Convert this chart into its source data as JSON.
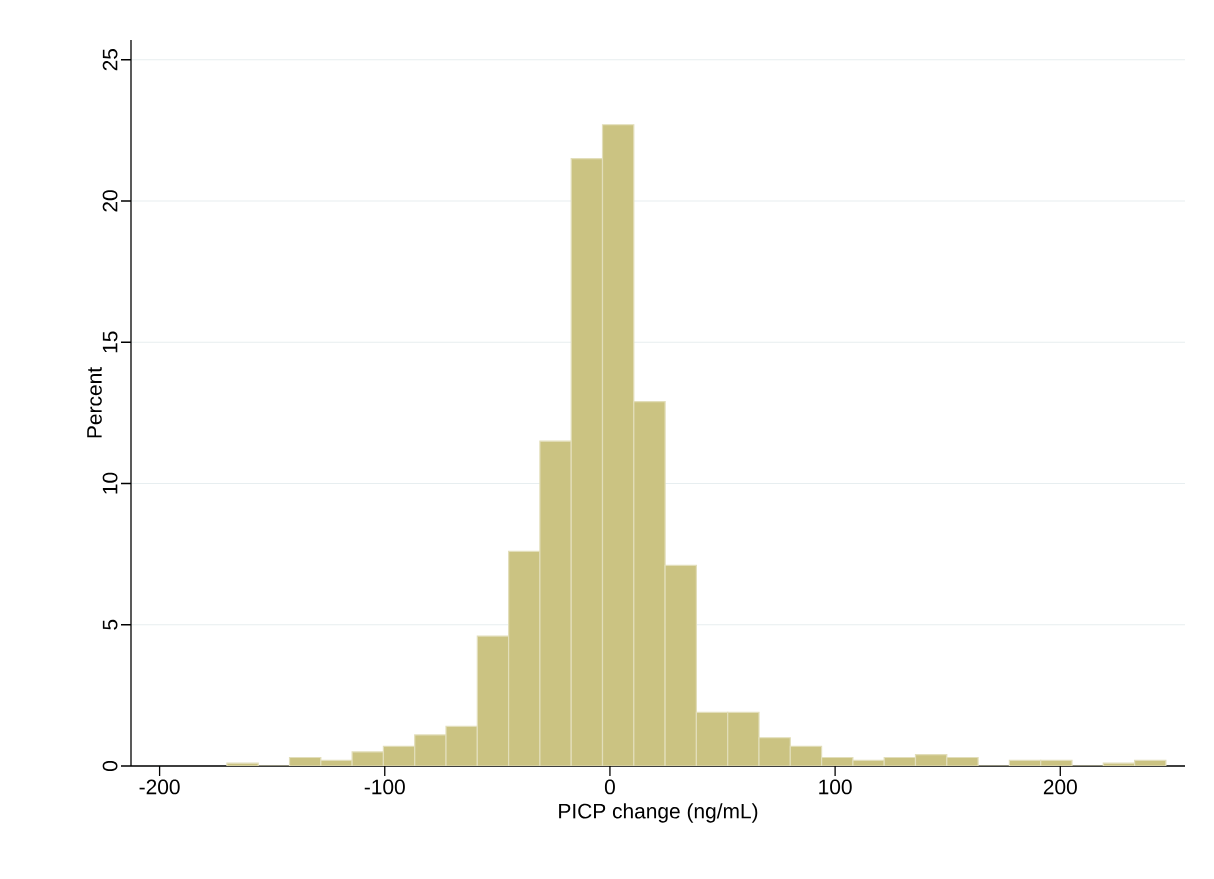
{
  "chart_data": {
    "type": "histogram",
    "xlabel": "PICP change (ng/mL)",
    "ylabel": "Percent",
    "bins": [
      -170.1,
      -156.2,
      -142.3,
      -128.4,
      -114.5,
      -100.6,
      -86.7,
      -72.8,
      -58.9,
      -45.0,
      -31.1,
      -17.2,
      -3.3,
      10.6,
      24.5,
      38.4,
      52.3,
      66.2,
      80.1,
      94.0,
      107.9,
      121.8,
      135.7,
      149.6,
      163.5,
      177.4,
      191.3,
      205.2,
      219.1,
      233.0,
      246.9
    ],
    "values": [
      0.1,
      0,
      0.3,
      0.2,
      0.5,
      0.7,
      1.1,
      1.4,
      4.6,
      7.6,
      11.5,
      21.5,
      22.7,
      12.9,
      7.1,
      1.9,
      1.9,
      1.0,
      0.7,
      0.3,
      0.2,
      0.3,
      0.4,
      0.3,
      0,
      0.2,
      0.2,
      0,
      0.1,
      0.2
    ],
    "color": "#cbc382",
    "xlim": [
      -212.7,
      255.4
    ],
    "ylim": [
      0,
      25.7
    ],
    "xticks": [
      -200,
      -100,
      0,
      100,
      200
    ],
    "yticks": [
      0,
      5,
      10,
      15,
      20,
      25
    ],
    "grid": "y"
  }
}
